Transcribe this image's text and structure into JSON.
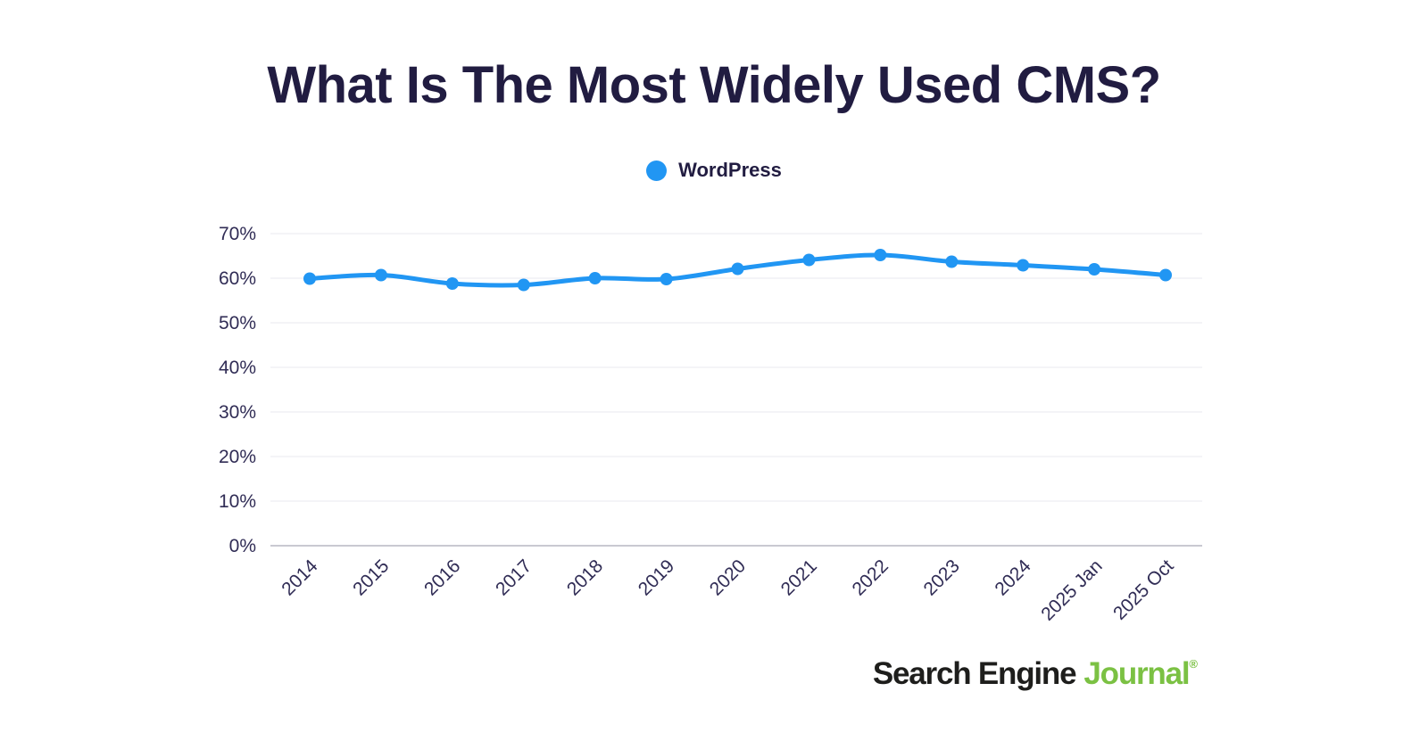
{
  "chart_data": {
    "type": "line",
    "title": "What Is The Most Widely Used CMS?",
    "categories": [
      "2014",
      "2015",
      "2016",
      "2017",
      "2018",
      "2019",
      "2020",
      "2021",
      "2022",
      "2023",
      "2024",
      "2025 Jan",
      "2025 Oct"
    ],
    "series": [
      {
        "name": "WordPress",
        "color": "#2196f3",
        "values": [
          59.9,
          60.7,
          58.8,
          58.5,
          60.0,
          59.8,
          62.1,
          64.1,
          65.2,
          63.7,
          62.9,
          62.0,
          60.7
        ]
      }
    ],
    "xlabel": "",
    "ylabel": "",
    "ylim": [
      0,
      70
    ],
    "yticks": [
      "0%",
      "10%",
      "20%",
      "30%",
      "40%",
      "50%",
      "60%",
      "70%"
    ],
    "grid": true,
    "legend_position": "top-center",
    "x_tick_rotation": -45
  },
  "footer": {
    "logo_part1": "Search Engine",
    "logo_part2": "Journal",
    "logo_reg": "®"
  },
  "colors": {
    "accent_blue": "#2196f3",
    "title_text": "#211c41",
    "axis_text": "#302c55",
    "gridline": "#eaeaef",
    "axis_line": "#b7b7c2",
    "logo_dark": "#1e1e1c",
    "logo_green": "#7bc143"
  }
}
